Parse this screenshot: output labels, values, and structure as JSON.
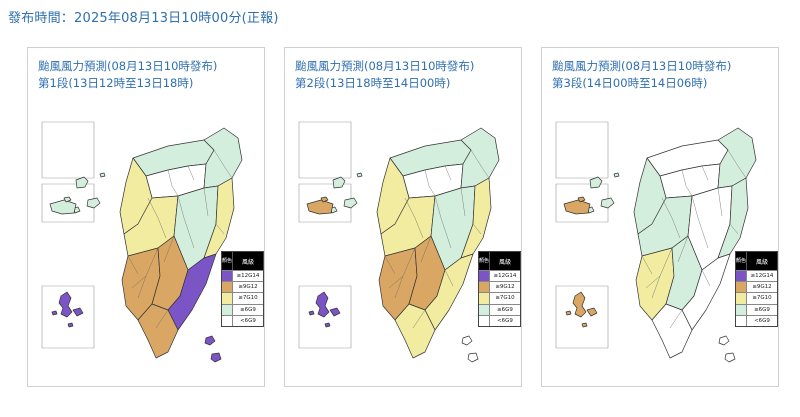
{
  "header": {
    "release_time": "發布時間：2025年08月13日10時00分(正報)"
  },
  "colors": {
    "gte12": "#7b55c6",
    "gte9": "#d9a763",
    "gte7": "#f1eca0",
    "gte6": "#d4eedd",
    "lt6": "#ffffff"
  },
  "legend": {
    "color_header": "顏色",
    "level_header": "風級",
    "rows": [
      {
        "label": "≥12G14",
        "level": "gte12"
      },
      {
        "label": "≥9G12",
        "level": "gte9"
      },
      {
        "label": "≥7G10",
        "level": "gte7"
      },
      {
        "label": "≥6G9",
        "level": "gte6"
      },
      {
        "label": "<6G9",
        "level": "lt6"
      }
    ]
  },
  "panels": [
    {
      "title": "颱風風力預測(08月13日10時發布)",
      "period": "第1段(13日12時至13日18時)",
      "regions": {
        "matsu": "gte6",
        "kinmen": "gte6",
        "penghu": "gte12",
        "north_coast": "gte6",
        "north_inner": "lt6",
        "northeast": "gte6",
        "west_coast": "gte7",
        "central_west": "gte7",
        "central_mountain": "gte6",
        "east_coast": "gte7",
        "southwest_coast": "gte9",
        "south_inner": "gte9",
        "southeast_coast": "gte12",
        "south_tip": "gte9",
        "green_island": "gte12",
        "orchid_island": "gte12"
      }
    },
    {
      "title": "颱風風力預測(08月13日10時發布)",
      "period": "第2段(13日18時至14日00時)",
      "regions": {
        "matsu": "gte6",
        "kinmen": "gte9",
        "penghu": "gte12",
        "north_coast": "gte6",
        "north_inner": "lt6",
        "northeast": "gte6",
        "west_coast": "gte7",
        "central_west": "gte7",
        "central_mountain": "gte6",
        "east_coast": "gte7",
        "southwest_coast": "gte9",
        "south_inner": "gte9",
        "southeast_coast": "gte7",
        "south_tip": "gte7",
        "green_island": "lt6",
        "orchid_island": "lt6"
      }
    },
    {
      "title": "颱風風力預測(08月13日10時發布)",
      "period": "第3段(14日00時至14日06時)",
      "regions": {
        "matsu": "gte6",
        "kinmen": "gte9",
        "penghu": "gte9",
        "north_coast": "lt6",
        "north_inner": "lt6",
        "northeast": "gte6",
        "west_coast": "gte6",
        "central_west": "gte6",
        "central_mountain": "lt6",
        "east_coast": "gte6",
        "southwest_coast": "gte7",
        "south_inner": "gte6",
        "southeast_coast": "lt6",
        "south_tip": "lt6",
        "green_island": "lt6",
        "orchid_island": "lt6"
      }
    }
  ]
}
